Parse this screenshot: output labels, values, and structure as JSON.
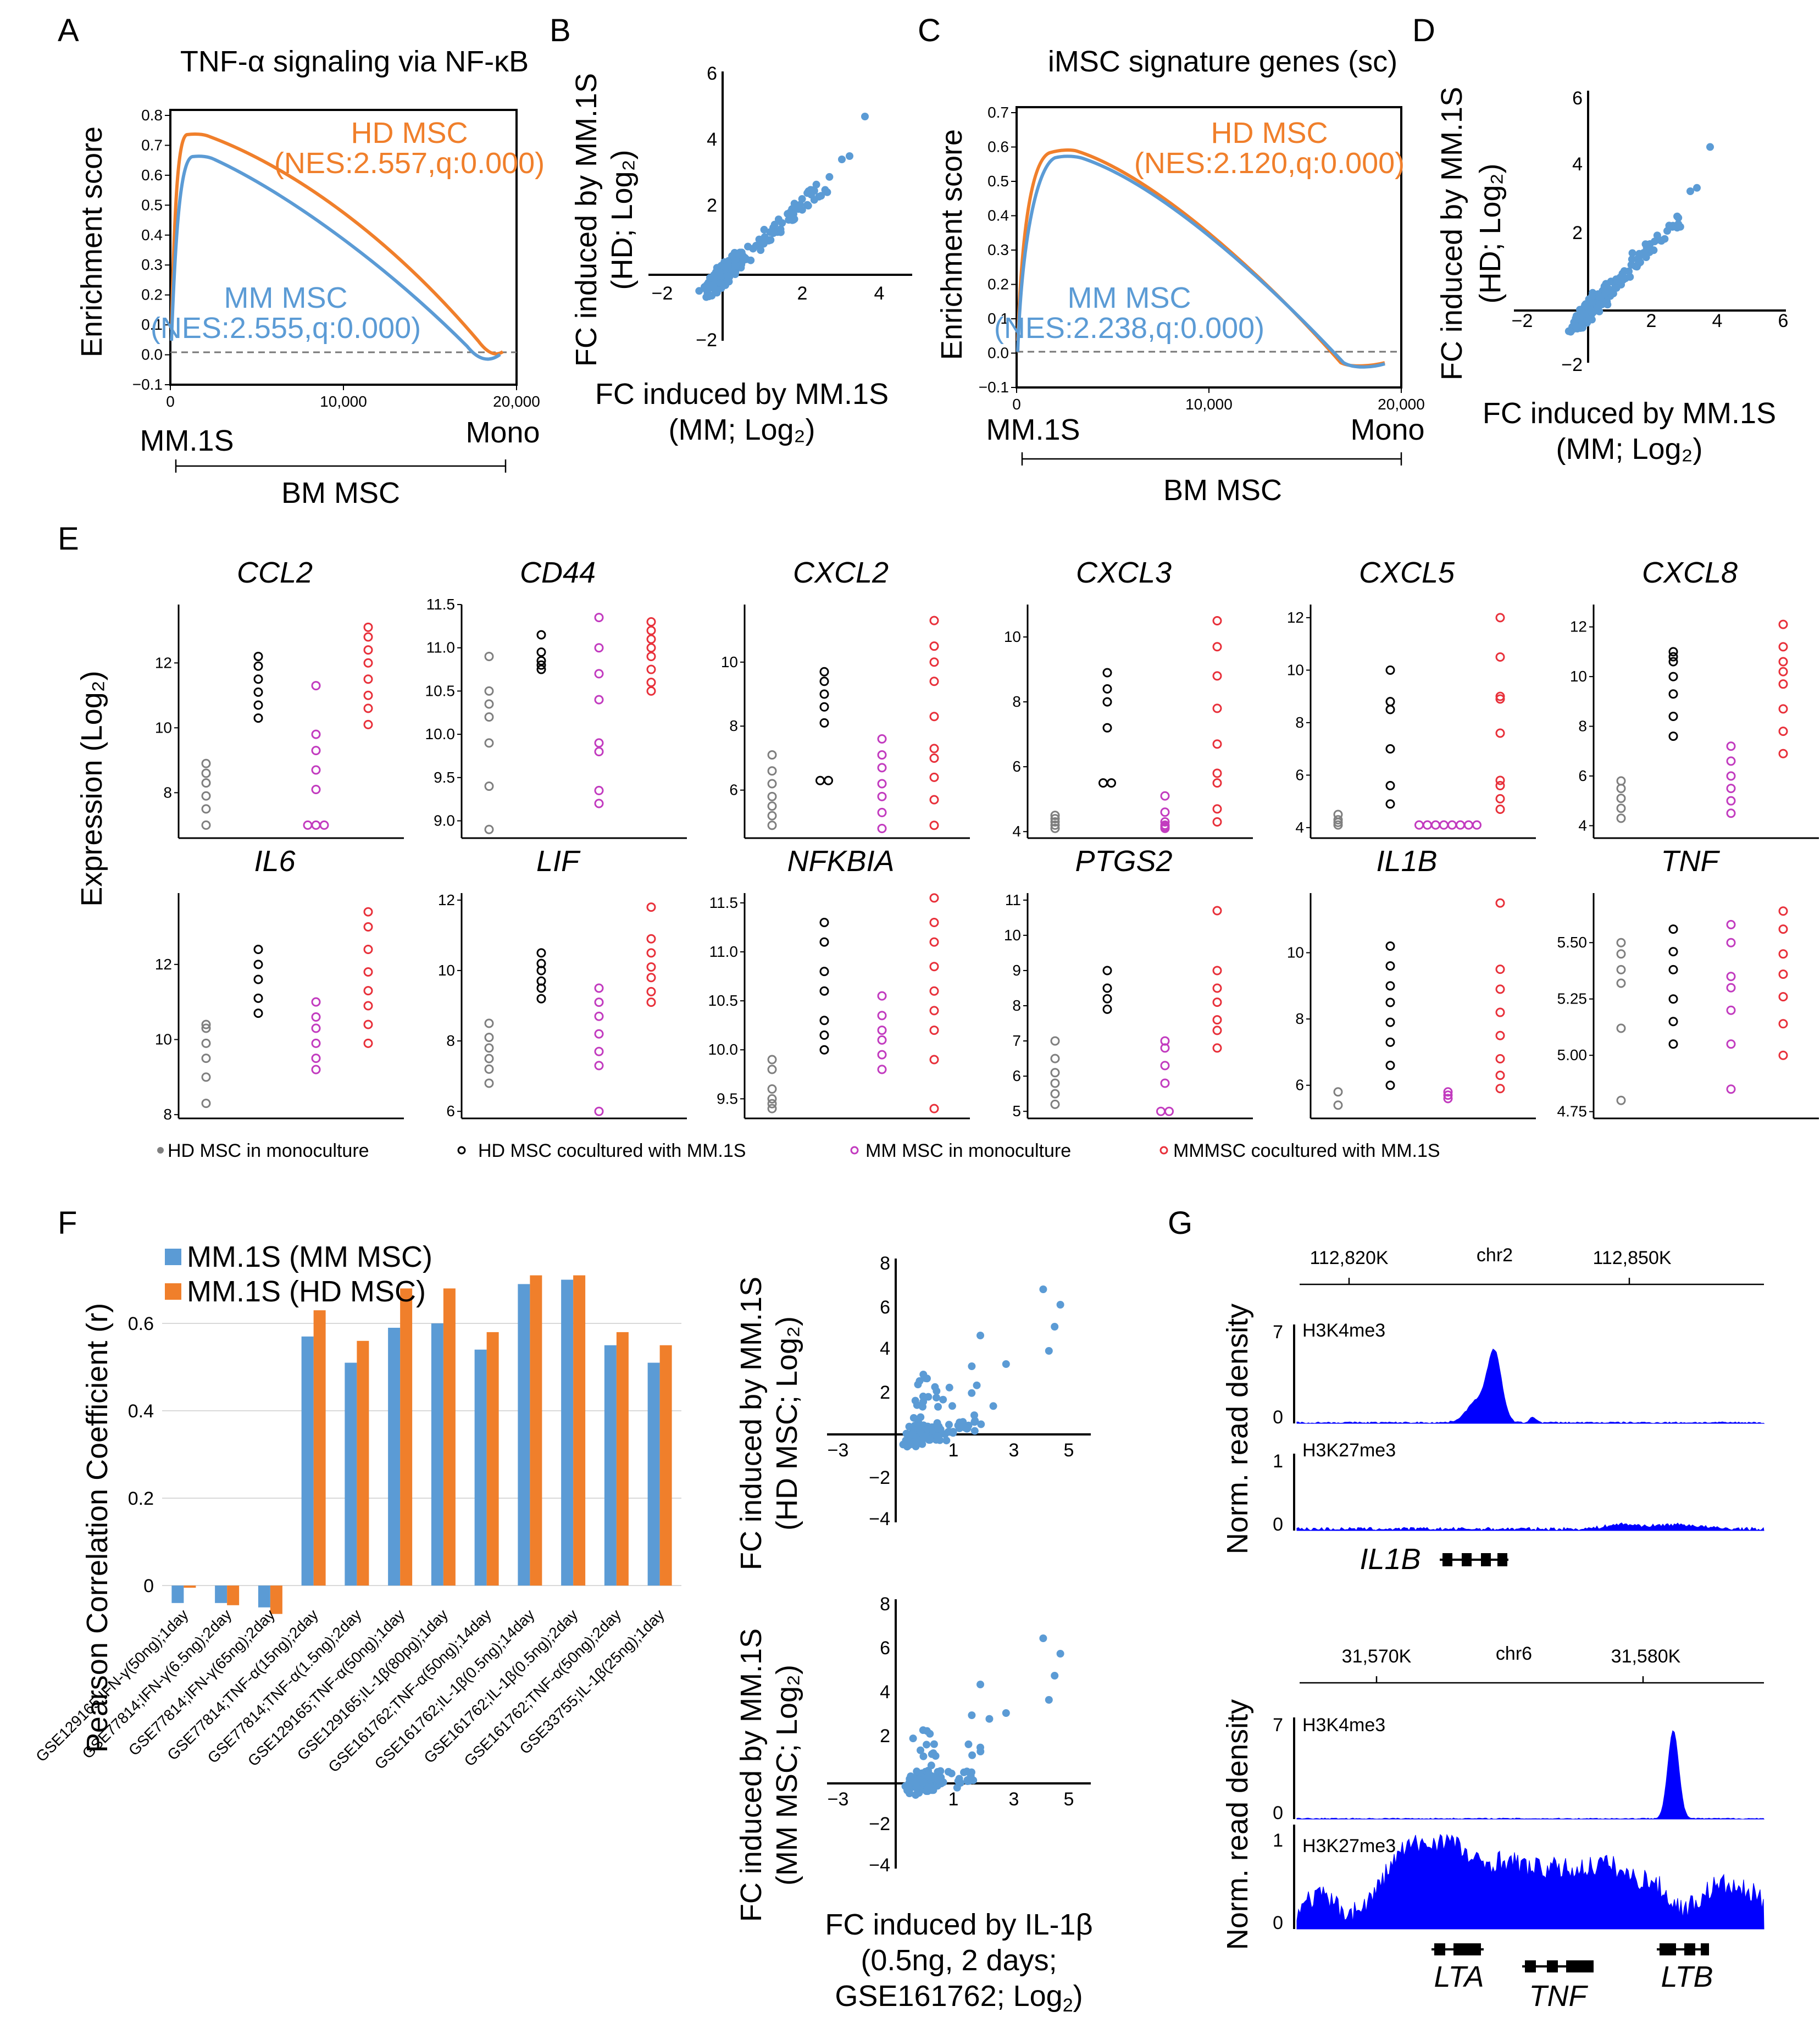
{
  "colors": {
    "orange": "#f07f2b",
    "blue": "#5b9bd5",
    "grey": "#7f7f7f",
    "black": "#000000",
    "magenta": "#c23bbf",
    "red": "#e8303a",
    "track": "#0000ff"
  },
  "panelA": {
    "letter": "A",
    "title": "TNF-α signaling via NF-κB",
    "ylabel": "Enrichment score",
    "yticks": [
      "0.8",
      "0.7",
      "0.6",
      "0.5",
      "0.4",
      "0.3",
      "0.2",
      "0.1",
      "0.0",
      "−0.1"
    ],
    "xticks": [
      "0",
      "10,000",
      "20,000"
    ],
    "left_label": "MM.1S",
    "right_label": "Mono",
    "bracket_label": "BM MSC",
    "hd_name": "HD MSC",
    "hd_stats": "(NES:2.557,q:0.000)",
    "mm_name": "MM MSC",
    "mm_stats": "(NES:2.555,q:0.000)"
  },
  "panelB": {
    "letter": "B",
    "ylabel1": "FC induced by MM.1S",
    "ylabel2": "(HD; Log₂)",
    "xlabel1": "FC induced by MM.1S",
    "xlabel2": "(MM; Log₂)",
    "yticks": [
      "6",
      "4",
      "2",
      "−2"
    ],
    "xticks": [
      "−2",
      "2",
      "4"
    ]
  },
  "panelC": {
    "letter": "C",
    "title": "iMSC signature genes (sc)",
    "ylabel": "Enrichment score",
    "yticks": [
      "0.7",
      "0.6",
      "0.5",
      "0.4",
      "0.3",
      "0.2",
      "0.1",
      "0.0",
      "−0.1"
    ],
    "xticks": [
      "0",
      "10,000",
      "20,000"
    ],
    "left_label": "MM.1S",
    "right_label": "Mono",
    "bracket_label": "BM MSC",
    "hd_name": "HD MSC",
    "hd_stats": "(NES:2.120,q:0.000)",
    "mm_name": "MM MSC",
    "mm_stats": "(NES:2.238,q:0.000)"
  },
  "panelD": {
    "letter": "D",
    "ylabel1": "FC induced by MM.1S",
    "ylabel2": "(HD; Log₂)",
    "xlabel1": "FC induced by MM.1S",
    "xlabel2": "(MM; Log₂)",
    "yticks": [
      "6",
      "4",
      "2",
      "−2"
    ],
    "xticks": [
      "−2",
      "2",
      "4",
      "6"
    ]
  },
  "panelE": {
    "letter": "E",
    "ylabel": "Expression (Log₂)",
    "legend": [
      "HD MSC in monoculture",
      "HD MSC cocultured with MM.1S",
      "MM MSC in monoculture",
      "MMMSC cocultured with MM.1S"
    ],
    "genes": [
      {
        "name": "CCL2",
        "ymin": 6.6,
        "ymax": 13.8,
        "ticks": [
          8,
          10,
          12
        ],
        "labels": [
          "8",
          "10",
          "12"
        ],
        "g": [
          [
            7,
            7.5,
            7.9,
            8.3,
            8.6,
            8.9
          ],
          [
            10.3,
            10.7,
            11.1,
            11.5,
            11.9,
            12.2
          ],
          [
            7,
            7,
            7,
            8.1,
            8.7,
            9.3,
            9.8,
            11.3
          ],
          [
            10.1,
            10.6,
            11,
            11.5,
            12,
            12.4,
            12.8,
            13.1
          ]
        ]
      },
      {
        "name": "CD44",
        "ymin": 8.8,
        "ymax": 11.5,
        "ticks": [
          9.0,
          9.5,
          10.0,
          10.5,
          11.0,
          11.5
        ],
        "labels": [
          "9.0",
          "9.5",
          "10.0",
          "10.5",
          "11.0",
          "11.5"
        ],
        "g": [
          [
            8.9,
            9.4,
            9.9,
            10.2,
            10.35,
            10.5,
            10.9
          ],
          [
            10.75,
            10.8,
            10.85,
            10.95,
            11.15
          ],
          [
            9.2,
            9.35,
            9.8,
            9.9,
            10.4,
            10.7,
            11.0,
            11.35
          ],
          [
            10.5,
            10.6,
            10.75,
            10.9,
            11.0,
            11.1,
            11.2,
            11.3
          ]
        ]
      },
      {
        "name": "CXCL2",
        "ymin": 4.5,
        "ymax": 11.8,
        "ticks": [
          6,
          8,
          10
        ],
        "labels": [
          "6",
          "8",
          "10"
        ],
        "g": [
          [
            4.9,
            5.2,
            5.5,
            5.8,
            6.2,
            6.6,
            7.1
          ],
          [
            6.3,
            6.3,
            8.1,
            8.6,
            9.0,
            9.4,
            9.7
          ],
          [
            4.8,
            5.3,
            5.8,
            6.2,
            6.7,
            7.1,
            7.6
          ],
          [
            4.9,
            5.7,
            6.4,
            7.0,
            7.3,
            8.3,
            9.4,
            10.0,
            10.5,
            11.3
          ]
        ]
      },
      {
        "name": "CXCL3",
        "ymin": 3.8,
        "ymax": 11.0,
        "ticks": [
          4,
          6,
          8,
          10
        ],
        "labels": [
          "4",
          "6",
          "8",
          "10"
        ],
        "g": [
          [
            4.1,
            4.2,
            4.3,
            4.4,
            4.5
          ],
          [
            5.5,
            5.5,
            7.2,
            8.0,
            8.4,
            8.9
          ],
          [
            4.1,
            4.15,
            4.2,
            4.3,
            4.6,
            5.1
          ],
          [
            4.3,
            4.7,
            5.5,
            5.8,
            6.7,
            7.8,
            8.8,
            9.7,
            10.5
          ]
        ]
      },
      {
        "name": "CXCL5",
        "ymin": 3.6,
        "ymax": 12.5,
        "ticks": [
          4,
          6,
          8,
          10,
          12
        ],
        "labels": [
          "4",
          "6",
          "8",
          "10",
          "12"
        ],
        "g": [
          [
            4.1,
            4.2,
            4.3,
            4.5
          ],
          [
            4.9,
            5.6,
            7.0,
            8.5,
            8.8,
            10.0
          ],
          [
            4.1,
            4.1,
            4.1,
            4.1,
            4.1,
            4.1,
            4.1,
            4.1
          ],
          [
            4.7,
            5.1,
            5.6,
            5.8,
            7.6,
            8.9,
            9.0,
            10.5,
            12.0
          ]
        ]
      },
      {
        "name": "CXCL8",
        "ymin": 3.5,
        "ymax": 12.9,
        "ticks": [
          4,
          6,
          8,
          10,
          12
        ],
        "labels": [
          "4",
          "6",
          "8",
          "10",
          "12"
        ],
        "g": [
          [
            4.3,
            4.7,
            5.1,
            5.5,
            5.8
          ],
          [
            7.6,
            8.4,
            9.3,
            10.0,
            10.6,
            10.8,
            11.0
          ],
          [
            4.5,
            5.0,
            5.5,
            6.0,
            6.6,
            7.2
          ],
          [
            6.9,
            7.8,
            8.7,
            9.7,
            10.2,
            10.6,
            11.2,
            12.1
          ]
        ]
      },
      {
        "name": "IL6",
        "ymin": 7.9,
        "ymax": 13.9,
        "ticks": [
          8,
          10,
          12
        ],
        "labels": [
          "8",
          "10",
          "12"
        ],
        "g": [
          [
            8.3,
            9.0,
            9.5,
            9.9,
            10.3,
            10.4
          ],
          [
            10.7,
            11.1,
            11.6,
            12.0,
            12.4
          ],
          [
            9.2,
            9.5,
            9.9,
            10.3,
            10.6,
            11.0
          ],
          [
            9.9,
            10.4,
            10.9,
            11.3,
            11.8,
            12.4,
            13.0,
            13.4
          ]
        ]
      },
      {
        "name": "LIF",
        "ymin": 5.8,
        "ymax": 12.2,
        "ticks": [
          6,
          8,
          10,
          12
        ],
        "labels": [
          "6",
          "8",
          "10",
          "12"
        ],
        "g": [
          [
            6.8,
            7.2,
            7.5,
            7.8,
            8.1,
            8.5
          ],
          [
            9.2,
            9.5,
            9.7,
            10.0,
            10.2,
            10.5
          ],
          [
            6.0,
            7.3,
            7.7,
            8.2,
            8.7,
            9.1,
            9.5
          ],
          [
            9.1,
            9.4,
            9.8,
            10.1,
            10.5,
            10.9,
            11.8
          ]
        ]
      },
      {
        "name": "NFKBIA",
        "ymin": 9.3,
        "ymax": 11.6,
        "ticks": [
          9.5,
          10.0,
          10.5,
          11.0,
          11.5
        ],
        "labels": [
          "9.5",
          "10.0",
          "10.5",
          "11.0",
          "11.5"
        ],
        "g": [
          [
            9.4,
            9.45,
            9.5,
            9.6,
            9.8,
            9.9
          ],
          [
            10.0,
            10.15,
            10.3,
            10.6,
            10.8,
            11.1,
            11.3
          ],
          [
            9.8,
            9.95,
            10.1,
            10.2,
            10.35,
            10.55
          ],
          [
            9.4,
            9.9,
            10.2,
            10.4,
            10.6,
            10.85,
            11.1,
            11.3,
            11.55
          ]
        ]
      },
      {
        "name": "PTGS2",
        "ymin": 4.8,
        "ymax": 11.2,
        "ticks": [
          5,
          6,
          7,
          8,
          9,
          10,
          11
        ],
        "labels": [
          "5",
          "6",
          "7",
          "8",
          "9",
          "10",
          "11"
        ],
        "g": [
          [
            5.2,
            5.5,
            5.8,
            6.1,
            6.5,
            7.0
          ],
          [
            7.9,
            8.2,
            8.5,
            9.0
          ],
          [
            5.0,
            5.0,
            5.8,
            6.3,
            6.8,
            7.0
          ],
          [
            6.8,
            7.3,
            7.6,
            8.1,
            8.5,
            9.0,
            10.7
          ]
        ]
      },
      {
        "name": "IL1B",
        "ymin": 5.0,
        "ymax": 11.8,
        "ticks": [
          6,
          8,
          10
        ],
        "labels": [
          "6",
          "8",
          "10"
        ],
        "g": [
          [
            5.4,
            5.8
          ],
          [
            6.0,
            6.6,
            7.3,
            7.9,
            8.5,
            9.0,
            9.6,
            10.2
          ],
          [
            5.6,
            5.7,
            5.8
          ],
          [
            5.9,
            6.3,
            6.8,
            7.5,
            8.2,
            8.9,
            9.5,
            11.5
          ]
        ]
      },
      {
        "name": "TNF",
        "ymin": 4.72,
        "ymax": 5.72,
        "ticks": [
          4.75,
          5.0,
          5.25,
          5.5
        ],
        "labels": [
          "4.75",
          "5.00",
          "5.25",
          "5.50"
        ],
        "g": [
          [
            4.8,
            5.12,
            5.32,
            5.38,
            5.45,
            5.5
          ],
          [
            5.05,
            5.15,
            5.25,
            5.38,
            5.46,
            5.56
          ],
          [
            4.85,
            5.05,
            5.2,
            5.3,
            5.35,
            5.5,
            5.58
          ],
          [
            5.0,
            5.14,
            5.26,
            5.36,
            5.45,
            5.56,
            5.64
          ]
        ]
      }
    ]
  },
  "panelF": {
    "letter": "F",
    "ylabel": "Pearson Correlation Coefficient (r)",
    "legend": [
      "MM.1S (MM MSC)",
      "MM.1S (HD MSC)"
    ],
    "yticks": [
      "0",
      "0.2",
      "0.4",
      "0.6"
    ],
    "scatter1_ylabel1": "FC induced by MM.1S",
    "scatter1_ylabel2": "(HD MSC; Log₂)",
    "scatter2_ylabel1": "FC induced by MM.1S",
    "scatter2_ylabel2": "(MM MSC; Log₂)",
    "scatter_xlabel1": "FC induced by IL-1β",
    "scatter_xlabel2": "(0.5ng, 2 days;",
    "scatter_xlabel3": "GSE161762; Log",
    "scatter_xlabel_sub": "2",
    "scatter_xlabel_end": ")",
    "scatter_yticks": [
      "8",
      "6",
      "4",
      "2",
      "−2",
      "−4"
    ],
    "scatter_xticks": [
      "−3",
      "1",
      "3",
      "5"
    ]
  },
  "chart_data": [
    {
      "type": "bar",
      "categories": [
        "GSE129165;IFN-γ(50ng);1day",
        "GSE77814;IFN-γ(6.5ng);2day",
        "GSE77814;IFN-γ(65ng);2day",
        "GSE77814;TNF-α(15ng);2day",
        "GSE77814;TNF-α(1.5ng);2day",
        "GSE129165;TNF-α(50ng);1day",
        "GSE129165;IL-1β(80pg);1day",
        "GSE161762;TNF-α(50ng);14day",
        "GSE161762;IL-1β(0.5ng);14day",
        "GSE161762;IL-1β(0.5ng);2day",
        "GSE161762;TNF-α(50ng);2day",
        "GSE33755;IL-1β(25ng);1day"
      ],
      "series": [
        {
          "name": "MM.1S (MM MSC)",
          "values": [
            -0.04,
            -0.04,
            -0.05,
            0.57,
            0.51,
            0.59,
            0.6,
            0.54,
            0.69,
            0.7,
            0.55,
            0.51
          ]
        },
        {
          "name": "MM.1S (HD MSC)",
          "values": [
            -0.005,
            -0.045,
            -0.065,
            0.63,
            0.56,
            0.68,
            0.68,
            0.58,
            0.71,
            0.71,
            0.58,
            0.55
          ]
        }
      ],
      "ylabel": "Pearson Correlation Coefficient (r)",
      "ylim": [
        -0.07,
        0.75
      ]
    }
  ],
  "panelG": {
    "letter": "G",
    "ylabel": "Norm. read density",
    "top": {
      "chr": "chr2",
      "pos1": "112,820K",
      "pos2": "112,850K",
      "tracks": [
        "H3K4me3",
        "H3K27me3"
      ],
      "scales": [
        "7",
        "0",
        "1",
        "0"
      ],
      "gene": "IL1B"
    },
    "bottom": {
      "chr": "chr6",
      "pos1": "31,570K",
      "pos2": "31,580K",
      "tracks": [
        "H3K4me3",
        "H3K27me3"
      ],
      "scales": [
        "7",
        "0",
        "1",
        "0"
      ],
      "genes": [
        "LTA",
        "TNF",
        "LTB"
      ]
    }
  }
}
